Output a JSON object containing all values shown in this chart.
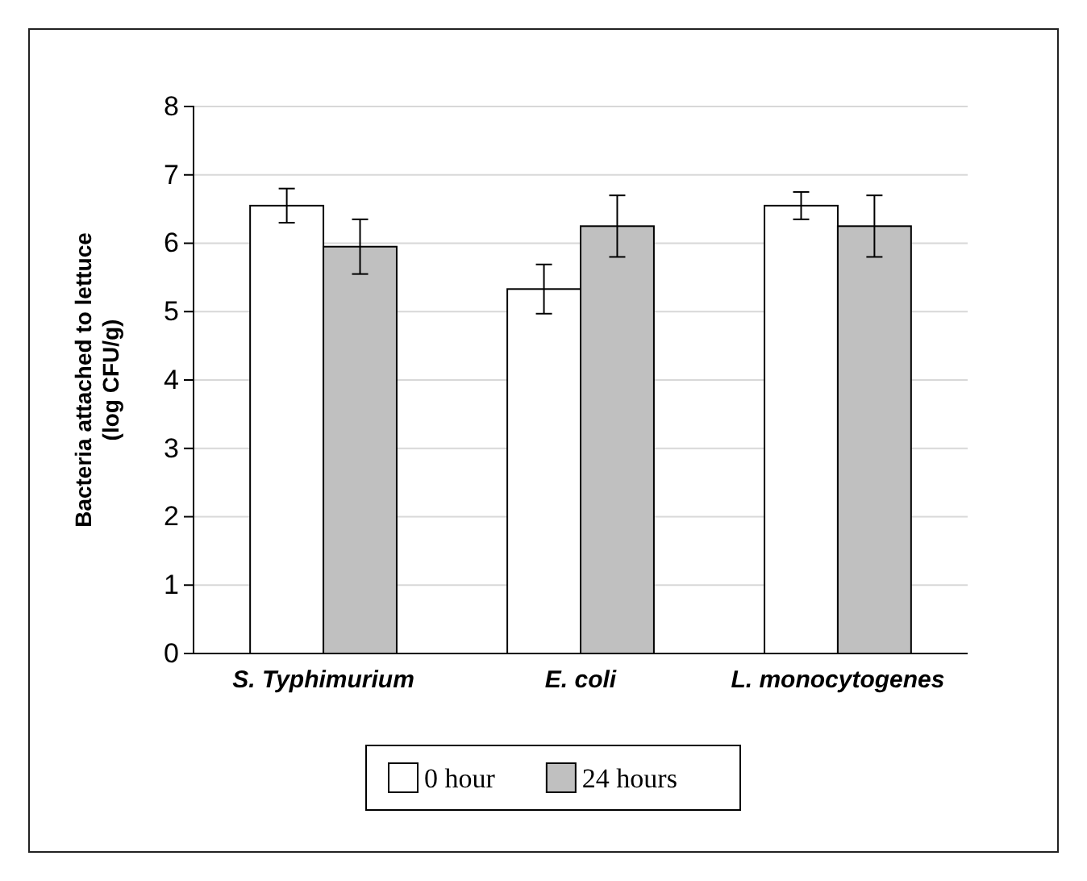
{
  "chart_data": {
    "type": "bar",
    "ylabel": "Bacteria attached to lettuce (log CFU/g)",
    "categories": [
      "S. Typhimurium",
      "E. coli",
      "L. monocytogenes"
    ],
    "series": [
      {
        "name": "0 hour",
        "color": "#ffffff",
        "values": [
          6.55,
          5.33,
          6.55
        ],
        "errors": [
          0.25,
          0.36,
          0.2
        ]
      },
      {
        "name": "24 hours",
        "color": "#c0c0c0",
        "values": [
          5.95,
          6.25,
          6.25
        ],
        "errors": [
          0.4,
          0.45,
          0.45
        ]
      }
    ],
    "ylim": [
      0,
      8
    ],
    "yticks": [
      0,
      1,
      2,
      3,
      4,
      5,
      6,
      7,
      8
    ],
    "grid": "y",
    "legend": "bottom"
  }
}
